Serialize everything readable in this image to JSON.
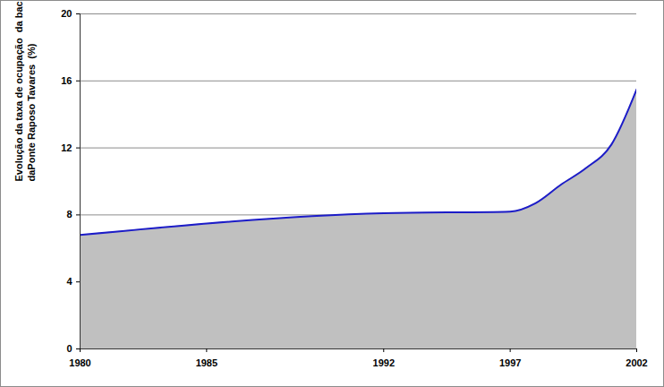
{
  "chart_data": {
    "type": "area",
    "ylabel": [
      "Evolução da taxa de ocupação  da bacia do rio Cotia à montante",
      "daPonte Raposo Tavares  (%)"
    ],
    "x": [
      1980,
      1992,
      1997,
      1998,
      1999,
      2000,
      2001,
      2002
    ],
    "values": [
      6.8,
      8.1,
      8.2,
      8.7,
      9.8,
      10.8,
      12.2,
      15.5
    ],
    "color": "#1c1cc8",
    "xlim": [
      1980,
      2002
    ],
    "xticks": [
      1980,
      1985,
      1992,
      1997,
      2002
    ],
    "ylim": [
      0,
      20
    ],
    "yticks": [
      0,
      4,
      8,
      12,
      16,
      20
    ],
    "grid": true
  }
}
